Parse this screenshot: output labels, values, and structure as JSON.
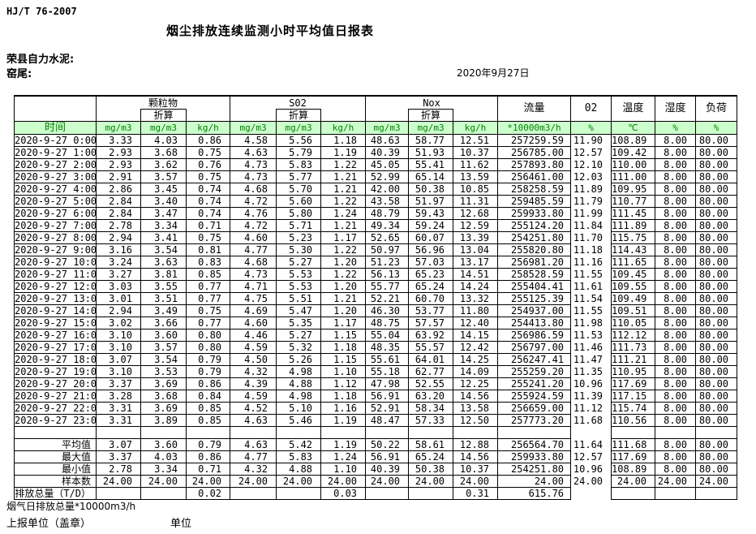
{
  "header": {
    "standard_code": "HJ/T  76-2007",
    "title": "烟尘排放连续监测小时平均值日报表",
    "company": "荣县自力水泥:",
    "location": "窑尾:",
    "date": "2020年9月27日"
  },
  "table": {
    "time_label": "时间",
    "subheader_label": "折算",
    "groups": [
      "颗粒物",
      "S02",
      "Nox"
    ],
    "single_columns": [
      "流量",
      "02",
      "温度",
      "湿度",
      "负荷"
    ],
    "units": [
      "mg/m3",
      "mg/m3",
      "kg/h",
      "mg/m3",
      "mg/m3",
      "kg/h",
      "mg/m3",
      "mg/m3",
      "kg/h",
      "*10000m3/h",
      "%",
      "℃",
      "%",
      "%"
    ],
    "rows": [
      {
        "time": "2020-9-27 0:00",
        "values": [
          "3.33",
          "4.03",
          "0.86",
          "4.58",
          "5.56",
          "1.18",
          "48.63",
          "58.77",
          "12.51",
          "257259.59",
          "11.90",
          "108.89",
          "8.00",
          "80.00"
        ]
      },
      {
        "time": "2020-9-27 1:00",
        "values": [
          "2.93",
          "3.68",
          "0.75",
          "4.63",
          "5.79",
          "1.19",
          "40.39",
          "51.93",
          "10.37",
          "256785.00",
          "12.57",
          "109.42",
          "8.00",
          "80.00"
        ]
      },
      {
        "time": "2020-9-27 2:00",
        "values": [
          "2.93",
          "3.62",
          "0.76",
          "4.73",
          "5.83",
          "1.22",
          "45.05",
          "55.41",
          "11.62",
          "257893.80",
          "12.10",
          "110.00",
          "8.00",
          "80.00"
        ]
      },
      {
        "time": "2020-9-27 3:00",
        "values": [
          "2.91",
          "3.57",
          "0.75",
          "4.73",
          "5.77",
          "1.21",
          "52.99",
          "65.14",
          "13.59",
          "256461.00",
          "12.03",
          "111.00",
          "8.00",
          "80.00"
        ]
      },
      {
        "time": "2020-9-27 4:00",
        "values": [
          "2.86",
          "3.45",
          "0.74",
          "4.68",
          "5.70",
          "1.21",
          "42.00",
          "50.38",
          "10.85",
          "258258.59",
          "11.89",
          "109.95",
          "8.00",
          "80.00"
        ]
      },
      {
        "time": "2020-9-27 5:00",
        "values": [
          "2.84",
          "3.40",
          "0.74",
          "4.72",
          "5.60",
          "1.22",
          "43.58",
          "51.97",
          "11.31",
          "259485.59",
          "11.79",
          "110.77",
          "8.00",
          "80.00"
        ]
      },
      {
        "time": "2020-9-27 6:00",
        "values": [
          "2.84",
          "3.47",
          "0.74",
          "4.76",
          "5.80",
          "1.24",
          "48.79",
          "59.43",
          "12.68",
          "259933.80",
          "11.99",
          "111.45",
          "8.00",
          "80.00"
        ]
      },
      {
        "time": "2020-9-27 7:00",
        "values": [
          "2.78",
          "3.34",
          "0.71",
          "4.72",
          "5.71",
          "1.21",
          "49.34",
          "59.24",
          "12.59",
          "255124.20",
          "11.84",
          "111.89",
          "8.00",
          "80.00"
        ]
      },
      {
        "time": "2020-9-27 8:00",
        "values": [
          "2.94",
          "3.41",
          "0.75",
          "4.60",
          "5.23",
          "1.17",
          "52.65",
          "60.07",
          "13.39",
          "254251.80",
          "11.70",
          "115.75",
          "8.00",
          "80.00"
        ]
      },
      {
        "time": "2020-9-27 9:00",
        "values": [
          "3.16",
          "3.54",
          "0.81",
          "4.77",
          "5.30",
          "1.22",
          "50.97",
          "56.96",
          "13.04",
          "255820.80",
          "11.18",
          "114.43",
          "8.00",
          "80.00"
        ]
      },
      {
        "time": "2020-9-27 10:00",
        "values": [
          "3.24",
          "3.63",
          "0.83",
          "4.68",
          "5.27",
          "1.20",
          "51.23",
          "57.03",
          "13.17",
          "256981.20",
          "11.16",
          "111.65",
          "8.00",
          "80.00"
        ]
      },
      {
        "time": "2020-9-27 11:00",
        "values": [
          "3.27",
          "3.81",
          "0.85",
          "4.73",
          "5.53",
          "1.22",
          "56.13",
          "65.23",
          "14.51",
          "258528.59",
          "11.55",
          "109.45",
          "8.00",
          "80.00"
        ]
      },
      {
        "time": "2020-9-27 12:00",
        "values": [
          "3.03",
          "3.55",
          "0.77",
          "4.71",
          "5.53",
          "1.20",
          "55.77",
          "65.24",
          "14.24",
          "255404.41",
          "11.61",
          "109.55",
          "8.00",
          "80.00"
        ]
      },
      {
        "time": "2020-9-27 13:00",
        "values": [
          "3.01",
          "3.51",
          "0.77",
          "4.75",
          "5.51",
          "1.21",
          "52.21",
          "60.70",
          "13.32",
          "255125.39",
          "11.54",
          "109.49",
          "8.00",
          "80.00"
        ]
      },
      {
        "time": "2020-9-27 14:00",
        "values": [
          "2.94",
          "3.49",
          "0.75",
          "4.69",
          "5.47",
          "1.20",
          "46.30",
          "53.77",
          "11.80",
          "254937.00",
          "11.55",
          "109.51",
          "8.00",
          "80.00"
        ]
      },
      {
        "time": "2020-9-27 15:00",
        "values": [
          "3.02",
          "3.66",
          "0.77",
          "4.60",
          "5.35",
          "1.17",
          "48.75",
          "57.57",
          "12.40",
          "254413.80",
          "11.98",
          "110.05",
          "8.00",
          "80.00"
        ]
      },
      {
        "time": "2020-9-27 16:00",
        "values": [
          "3.10",
          "3.60",
          "0.80",
          "4.46",
          "5.27",
          "1.15",
          "55.04",
          "63.92",
          "14.15",
          "256986.59",
          "11.53",
          "112.12",
          "8.00",
          "80.00"
        ]
      },
      {
        "time": "2020-9-27 17:00",
        "values": [
          "3.10",
          "3.57",
          "0.80",
          "4.59",
          "5.32",
          "1.18",
          "48.35",
          "55.57",
          "12.42",
          "256797.00",
          "11.46",
          "111.73",
          "8.00",
          "80.00"
        ]
      },
      {
        "time": "2020-9-27 18:00",
        "values": [
          "3.07",
          "3.54",
          "0.79",
          "4.50",
          "5.26",
          "1.15",
          "55.61",
          "64.01",
          "14.25",
          "256247.41",
          "11.47",
          "111.21",
          "8.00",
          "80.00"
        ]
      },
      {
        "time": "2020-9-27 19:00",
        "values": [
          "3.10",
          "3.53",
          "0.79",
          "4.32",
          "4.98",
          "1.10",
          "55.18",
          "62.77",
          "14.09",
          "255259.20",
          "11.35",
          "110.95",
          "8.00",
          "80.00"
        ]
      },
      {
        "time": "2020-9-27 20:00",
        "values": [
          "3.37",
          "3.69",
          "0.86",
          "4.39",
          "4.88",
          "1.12",
          "47.98",
          "52.55",
          "12.25",
          "255241.20",
          "10.96",
          "117.69",
          "8.00",
          "80.00"
        ]
      },
      {
        "time": "2020-9-27 21:00",
        "values": [
          "3.28",
          "3.68",
          "0.84",
          "4.59",
          "4.98",
          "1.18",
          "56.91",
          "63.20",
          "14.56",
          "255924.59",
          "11.39",
          "117.15",
          "8.00",
          "80.00"
        ]
      },
      {
        "time": "2020-9-27 22:00",
        "values": [
          "3.31",
          "3.69",
          "0.85",
          "4.52",
          "5.10",
          "1.16",
          "52.91",
          "58.34",
          "13.58",
          "256659.00",
          "11.12",
          "115.74",
          "8.00",
          "80.00"
        ]
      },
      {
        "time": "2020-9-27 23:00",
        "values": [
          "3.31",
          "3.89",
          "0.85",
          "4.63",
          "5.46",
          "1.19",
          "48.47",
          "57.33",
          "12.50",
          "257773.20",
          "11.68",
          "110.56",
          "8.00",
          "80.00"
        ]
      }
    ],
    "summary_rows": [
      {
        "label": "平均值",
        "values": [
          "3.07",
          "3.60",
          "0.79",
          "4.63",
          "5.42",
          "1.19",
          "50.22",
          "58.61",
          "12.88",
          "256564.70",
          "11.64",
          "111.68",
          "8.00",
          "80.00"
        ]
      },
      {
        "label": "最大值",
        "values": [
          "3.37",
          "4.03",
          "0.86",
          "4.77",
          "5.83",
          "1.24",
          "56.91",
          "65.24",
          "14.56",
          "259933.80",
          "12.57",
          "117.69",
          "8.00",
          "80.00"
        ]
      },
      {
        "label": "最小值",
        "values": [
          "2.78",
          "3.34",
          "0.71",
          "4.32",
          "4.88",
          "1.10",
          "40.39",
          "50.38",
          "10.37",
          "254251.80",
          "10.96",
          "108.89",
          "8.00",
          "80.00"
        ]
      },
      {
        "label": "样本数",
        "values": [
          "24.00",
          "24.00",
          "24.00",
          "24.00",
          "24.00",
          "24.00",
          "24.00",
          "24.00",
          "24.00",
          "24.00",
          "24.00",
          "24.00",
          "24.00",
          "24.00"
        ]
      }
    ],
    "total_row": {
      "label": "日排放总量（T/D）",
      "values": [
        "",
        "",
        "0.02",
        "",
        "",
        "0.03",
        "",
        "",
        "0.31",
        "615.76",
        "",
        "",
        "",
        ""
      ]
    }
  },
  "footer": {
    "note": "烟气日排放总量*10000m3/h",
    "report_unit": "上报单位（盖章）",
    "unit_label": "单位"
  },
  "colors": {
    "header_green_bg": "#ccffcc",
    "header_green_text": "#008000",
    "grid": "#000000"
  }
}
